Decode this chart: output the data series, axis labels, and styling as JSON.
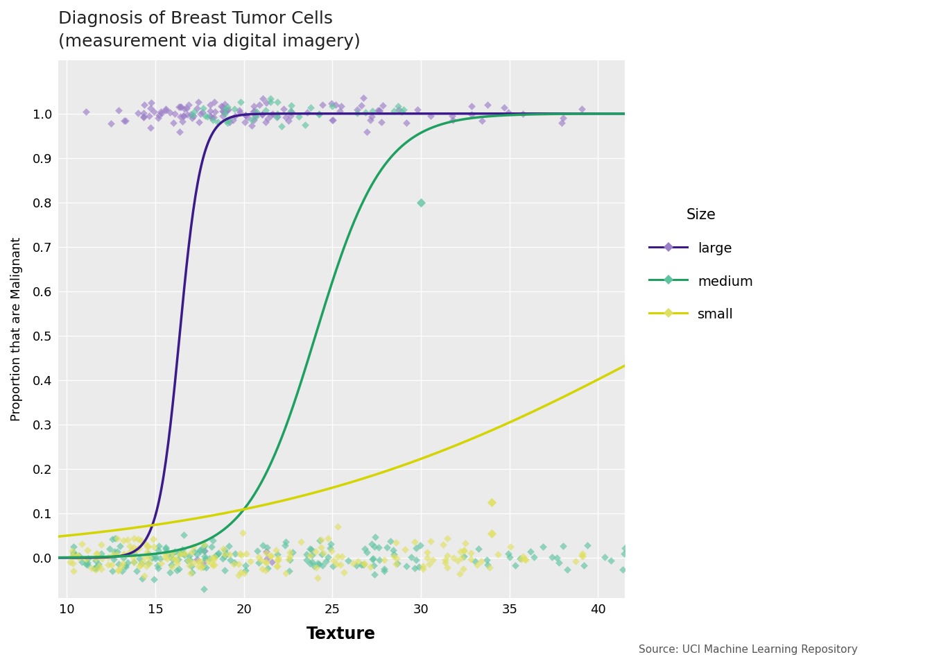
{
  "title_line1": "Diagnosis of Breast Tumor Cells",
  "title_line2": "(measurement via digital imagery)",
  "xlabel": "Texture",
  "ylabel": "Proportion that are Malignant",
  "source": "Source: UCI Machine Learning Repository",
  "xlim": [
    9.5,
    41.5
  ],
  "ylim": [
    -0.09,
    1.12
  ],
  "xticks": [
    10,
    15,
    20,
    25,
    30,
    35,
    40
  ],
  "yticks": [
    0.0,
    0.1,
    0.2,
    0.3,
    0.4,
    0.5,
    0.6,
    0.7,
    0.8,
    0.9,
    1.0
  ],
  "background_color": "#ebebeb",
  "grid_color": "#ffffff",
  "colors": {
    "large": "#3b1a8a",
    "medium": "#1fa060",
    "small": "#d4d400"
  },
  "scatter_colors": {
    "large": "#9b7fc8",
    "medium": "#5ec4a0",
    "small": "#e0e060"
  },
  "logistic_params": {
    "large": {
      "beta0": -27.0,
      "beta1": 1.65
    },
    "medium": {
      "beta0": -12.5,
      "beta1": 0.52
    },
    "small": {
      "beta0": -3.8,
      "beta1": 0.085
    }
  }
}
